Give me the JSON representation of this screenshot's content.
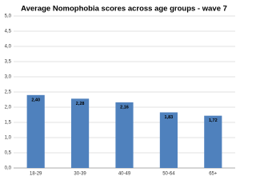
{
  "chart_data": {
    "type": "bar",
    "title": "Average Nomophobia scores across age groups - wave 7",
    "categories": [
      "18-29",
      "30-39",
      "40-49",
      "50-64",
      "65+"
    ],
    "values": [
      2.4,
      2.28,
      2.16,
      1.83,
      1.72
    ],
    "value_labels": [
      "2,40",
      "2,28",
      "2,16",
      "1,83",
      "1,72"
    ],
    "color": "#4f81bd",
    "ylim": [
      0,
      5
    ],
    "yticks": [
      {
        "value": 0,
        "label": "0,0"
      },
      {
        "value": 0.5,
        "label": "0,5"
      },
      {
        "value": 1,
        "label": "1,0"
      },
      {
        "value": 1.5,
        "label": "1,5"
      },
      {
        "value": 2,
        "label": "2,0"
      },
      {
        "value": 2.5,
        "label": "2,5"
      },
      {
        "value": 3,
        "label": "3,0"
      },
      {
        "value": 3.5,
        "label": "3,5"
      },
      {
        "value": 4,
        "label": "4,0"
      },
      {
        "value": 4.5,
        "label": "4,5"
      },
      {
        "value": 5,
        "label": "5,0"
      }
    ],
    "grid": true
  }
}
